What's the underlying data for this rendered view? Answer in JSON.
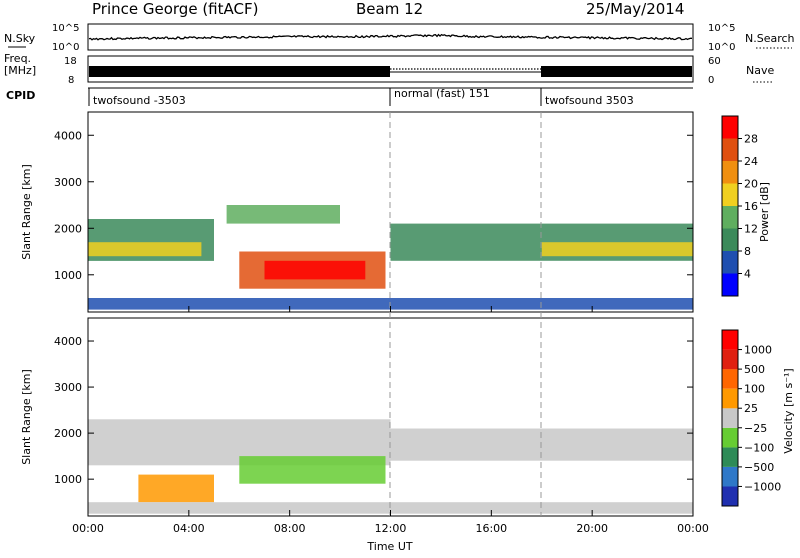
{
  "header": {
    "station": "Prince George (fitACF)",
    "beam": "Beam 12",
    "date": "25/May/2014"
  },
  "noise_panel": {
    "left_label": "N.Sky",
    "right_label": "N.Search",
    "left_ticks": [
      "10^5",
      "10^0"
    ],
    "right_ticks": [
      "10^5",
      "10^0"
    ]
  },
  "freq_panel": {
    "left_label_1": "Freq.",
    "left_label_2": "[MHz]",
    "right_label": "Nave",
    "left_ticks": [
      "18",
      "8"
    ],
    "right_ticks": [
      "60",
      "0"
    ]
  },
  "cpid": {
    "label": "CPID",
    "segments": [
      {
        "label": "twofsound -3503",
        "start_hour": 0
      },
      {
        "label": "normal (fast) 151",
        "start_hour": 12
      },
      {
        "label": "twofsound 3503",
        "start_hour": 18
      }
    ]
  },
  "chart_data": [
    {
      "type": "heatmap",
      "name": "power",
      "ylabel": "Slant Range [km]",
      "y_ticks": [
        1000,
        2000,
        3000,
        4000
      ],
      "ylim": [
        200,
        4500
      ],
      "xlim": [
        0,
        24
      ],
      "colorbar": {
        "label": "Power [dB]",
        "ticks": [
          "4",
          "8",
          "12",
          "16",
          "20",
          "24",
          "28"
        ],
        "colors": [
          "#0000ff",
          "#1f4fb0",
          "#3b8a5a",
          "#5fae5f",
          "#f0d020",
          "#f08f10",
          "#e05010",
          "#ff0000"
        ]
      }
    },
    {
      "type": "heatmap",
      "name": "velocity",
      "ylabel": "Slant Range [km]",
      "y_ticks": [
        1000,
        2000,
        3000,
        4000
      ],
      "ylim": [
        200,
        4500
      ],
      "xlim": [
        0,
        24
      ],
      "xlabel": "Time UT",
      "x_ticks": [
        "00:00",
        "04:00",
        "08:00",
        "12:00",
        "16:00",
        "20:00",
        "00:00"
      ],
      "colorbar": {
        "label": "Velocity [m s⁻¹]",
        "ticks": [
          "1000",
          "500",
          "100",
          "25",
          "−25",
          "−100",
          "−500",
          "−1000"
        ],
        "colors": [
          "#2030b0",
          "#2f78c8",
          "#2e8b57",
          "#66cc33",
          "#c8c8c8",
          "#ff9900",
          "#ff6600",
          "#e02010",
          "#ff0000"
        ]
      }
    }
  ]
}
